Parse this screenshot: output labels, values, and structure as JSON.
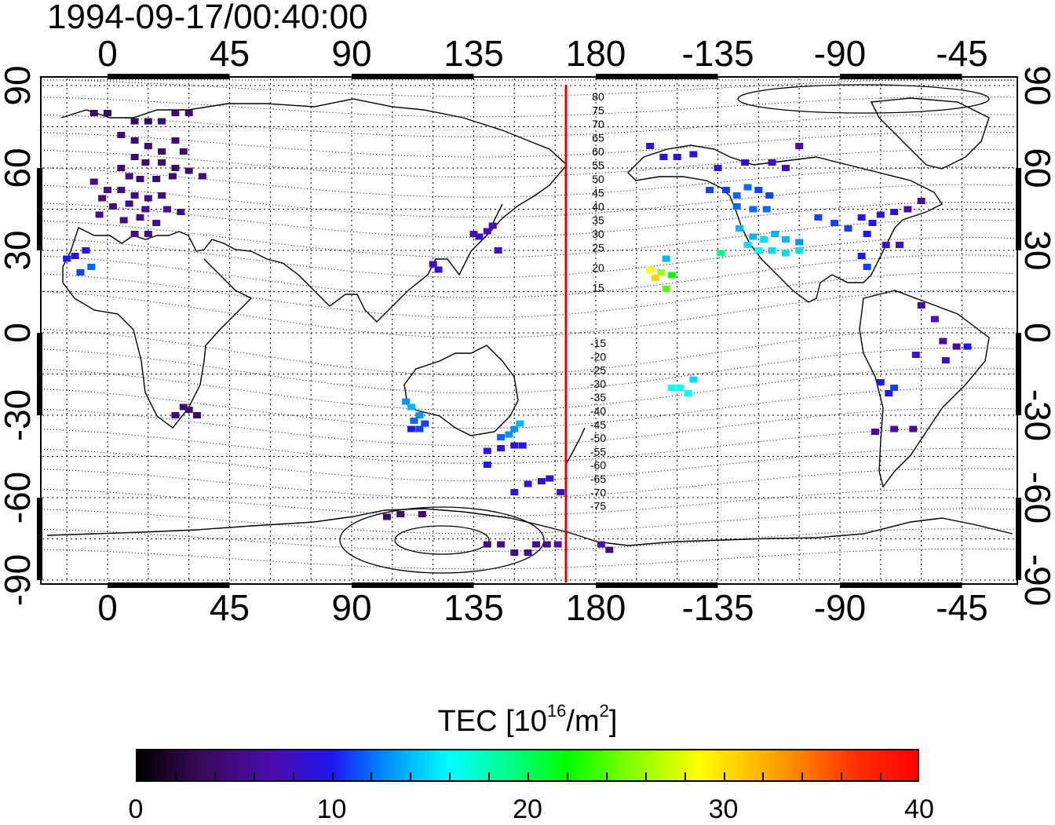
{
  "timestamp": "1994-09-17/00:40:00",
  "chart_data": {
    "type": "heatmap",
    "title": "1994-09-17/00:40:00",
    "x_ticks": [
      "0",
      "45",
      "90",
      "135",
      "180",
      "-135",
      "-90",
      "-45"
    ],
    "y_ticks_left": [
      "90",
      "60",
      "30",
      "0",
      "-30",
      "-60",
      "-90"
    ],
    "y_ticks_right": [
      "90",
      "60",
      "30",
      "0",
      "-30",
      "-60",
      "-90"
    ],
    "lon_range": [
      -20,
      325
    ],
    "lat_range": [
      -92,
      92
    ],
    "terminator_line_lon": 169,
    "terminator_color": "#e00000",
    "grid": true,
    "contour_labels_north": [
      "80",
      "75",
      "70",
      "65",
      "60",
      "55",
      "50",
      "45",
      "40",
      "35",
      "30",
      "25",
      "20",
      "15"
    ],
    "contour_labels_south": [
      "-15",
      "-20",
      "-25",
      "-30",
      "-35",
      "-40",
      "-45",
      "-50",
      "-55",
      "-60",
      "-65",
      "-70",
      "-75"
    ],
    "colorbar": {
      "label_main": "TEC  [10",
      "label_sup": "16",
      "label_mid": "/m",
      "label_sup2": "2",
      "label_end": "]",
      "range": [
        0,
        40
      ],
      "ticks": [
        "0",
        "10",
        "20",
        "30",
        "40"
      ]
    },
    "observations": [
      {
        "lon": -5,
        "lat": 80,
        "tec": 3
      },
      {
        "lon": 0,
        "lat": 80,
        "tec": 3
      },
      {
        "lon": 10,
        "lat": 77,
        "tec": 3
      },
      {
        "lon": 15,
        "lat": 77,
        "tec": 3
      },
      {
        "lon": 20,
        "lat": 77,
        "tec": 4
      },
      {
        "lon": 25,
        "lat": 80,
        "tec": 4
      },
      {
        "lon": 30,
        "lat": 80,
        "tec": 4
      },
      {
        "lon": 5,
        "lat": 72,
        "tec": 4
      },
      {
        "lon": 10,
        "lat": 70,
        "tec": 4
      },
      {
        "lon": 15,
        "lat": 68,
        "tec": 4
      },
      {
        "lon": 20,
        "lat": 66,
        "tec": 4
      },
      {
        "lon": 25,
        "lat": 70,
        "tec": 4
      },
      {
        "lon": 28,
        "lat": 66,
        "tec": 4
      },
      {
        "lon": 10,
        "lat": 64,
        "tec": 4
      },
      {
        "lon": 14,
        "lat": 62,
        "tec": 4
      },
      {
        "lon": 20,
        "lat": 62,
        "tec": 4
      },
      {
        "lon": 25,
        "lat": 60,
        "tec": 4
      },
      {
        "lon": 5,
        "lat": 60,
        "tec": 4
      },
      {
        "lon": 8,
        "lat": 57,
        "tec": 5
      },
      {
        "lon": 12,
        "lat": 56,
        "tec": 4
      },
      {
        "lon": 18,
        "lat": 56,
        "tec": 4
      },
      {
        "lon": 24,
        "lat": 57,
        "tec": 4
      },
      {
        "lon": 30,
        "lat": 59,
        "tec": 4
      },
      {
        "lon": 35,
        "lat": 57,
        "tec": 5
      },
      {
        "lon": -5,
        "lat": 55,
        "tec": 5
      },
      {
        "lon": 0,
        "lat": 52,
        "tec": 5
      },
      {
        "lon": 5,
        "lat": 52,
        "tec": 5
      },
      {
        "lon": 10,
        "lat": 50,
        "tec": 5
      },
      {
        "lon": 15,
        "lat": 49,
        "tec": 5
      },
      {
        "lon": 20,
        "lat": 50,
        "tec": 5
      },
      {
        "lon": -2,
        "lat": 49,
        "tec": 5
      },
      {
        "lon": 2,
        "lat": 46,
        "tec": 5
      },
      {
        "lon": 8,
        "lat": 47,
        "tec": 5
      },
      {
        "lon": 14,
        "lat": 45,
        "tec": 6
      },
      {
        "lon": 22,
        "lat": 45,
        "tec": 6
      },
      {
        "lon": 27,
        "lat": 44,
        "tec": 5
      },
      {
        "lon": 12,
        "lat": 42,
        "tec": 5
      },
      {
        "lon": 18,
        "lat": 40,
        "tec": 5
      },
      {
        "lon": 6,
        "lat": 41,
        "tec": 5
      },
      {
        "lon": -3,
        "lat": 43,
        "tec": 6
      },
      {
        "lon": 10,
        "lat": 36,
        "tec": 5
      },
      {
        "lon": 15,
        "lat": 36,
        "tec": 5
      },
      {
        "lon": -15,
        "lat": 27,
        "tec": 10
      },
      {
        "lon": -12,
        "lat": 28,
        "tec": 9
      },
      {
        "lon": -8,
        "lat": 30,
        "tec": 9
      },
      {
        "lon": -10,
        "lat": 22,
        "tec": 11
      },
      {
        "lon": -6,
        "lat": 24,
        "tec": 12
      },
      {
        "lon": 28,
        "lat": -27,
        "tec": 4
      },
      {
        "lon": 30,
        "lat": -28,
        "tec": 4
      },
      {
        "lon": 25,
        "lat": -30,
        "tec": 4
      },
      {
        "lon": 33,
        "lat": -30,
        "tec": 4
      },
      {
        "lon": 135,
        "lat": 36,
        "tec": 7
      },
      {
        "lon": 140,
        "lat": 37,
        "tec": 7
      },
      {
        "lon": 142,
        "lat": 39,
        "tec": 7
      },
      {
        "lon": 137,
        "lat": 35,
        "tec": 8
      },
      {
        "lon": 144,
        "lat": 30,
        "tec": 8
      },
      {
        "lon": 120,
        "lat": 25,
        "tec": 8
      },
      {
        "lon": 122,
        "lat": 23,
        "tec": 8
      },
      {
        "lon": 110,
        "lat": -25,
        "tec": 13
      },
      {
        "lon": 112,
        "lat": -27,
        "tec": 14
      },
      {
        "lon": 115,
        "lat": -30,
        "tec": 13
      },
      {
        "lon": 113,
        "lat": -32,
        "tec": 12
      },
      {
        "lon": 117,
        "lat": -33,
        "tec": 11
      },
      {
        "lon": 112,
        "lat": -35,
        "tec": 10
      },
      {
        "lon": 115,
        "lat": -35,
        "tec": 11
      },
      {
        "lon": 145,
        "lat": -38,
        "tec": 12
      },
      {
        "lon": 148,
        "lat": -37,
        "tec": 13
      },
      {
        "lon": 150,
        "lat": -35,
        "tec": 13
      },
      {
        "lon": 152,
        "lat": -33,
        "tec": 14
      },
      {
        "lon": 140,
        "lat": -43,
        "tec": 9
      },
      {
        "lon": 145,
        "lat": -42,
        "tec": 9
      },
      {
        "lon": 150,
        "lat": -41,
        "tec": 9
      },
      {
        "lon": 153,
        "lat": -41,
        "tec": 10
      },
      {
        "lon": 140,
        "lat": -48,
        "tec": 10
      },
      {
        "lon": 155,
        "lat": -55,
        "tec": 9
      },
      {
        "lon": 160,
        "lat": -54,
        "tec": 9
      },
      {
        "lon": 163,
        "lat": -53,
        "tec": 9
      },
      {
        "lon": 150,
        "lat": -58,
        "tec": 9
      },
      {
        "lon": 167,
        "lat": -58,
        "tec": 8
      },
      {
        "lon": 103,
        "lat": -67,
        "tec": 4
      },
      {
        "lon": 108,
        "lat": -66,
        "tec": 4
      },
      {
        "lon": 116,
        "lat": -66,
        "tec": 4
      },
      {
        "lon": 140,
        "lat": -77,
        "tec": 5
      },
      {
        "lon": 145,
        "lat": -77,
        "tec": 5
      },
      {
        "lon": 150,
        "lat": -80,
        "tec": 5
      },
      {
        "lon": 155,
        "lat": -80,
        "tec": 5
      },
      {
        "lon": 158,
        "lat": -77,
        "tec": 6
      },
      {
        "lon": 162,
        "lat": -77,
        "tec": 6
      },
      {
        "lon": 166,
        "lat": -77,
        "tec": 7
      },
      {
        "lon": 182,
        "lat": -77,
        "tec": 7
      },
      {
        "lon": 185,
        "lat": -79,
        "tec": 5
      },
      {
        "lon": 200,
        "lat": 23,
        "tec": 29
      },
      {
        "lon": 202,
        "lat": 20,
        "tec": 31
      },
      {
        "lon": 204,
        "lat": 22,
        "tec": 26
      },
      {
        "lon": 206,
        "lat": 16,
        "tec": 24
      },
      {
        "lon": 208,
        "lat": 21,
        "tec": 22
      },
      {
        "lon": 206,
        "lat": 27,
        "tec": 14
      },
      {
        "lon": 208,
        "lat": -20,
        "tec": 16
      },
      {
        "lon": 211,
        "lat": -20,
        "tec": 16
      },
      {
        "lon": 214,
        "lat": -22,
        "tec": 16
      },
      {
        "lon": 216,
        "lat": -17,
        "tec": 15
      },
      {
        "lon": 200,
        "lat": 68,
        "tec": 9
      },
      {
        "lon": 205,
        "lat": 64,
        "tec": 9
      },
      {
        "lon": 210,
        "lat": 64,
        "tec": 9
      },
      {
        "lon": 216,
        "lat": 65,
        "tec": 9
      },
      {
        "lon": 225,
        "lat": 60,
        "tec": 9
      },
      {
        "lon": 235,
        "lat": 62,
        "tec": 9
      },
      {
        "lon": 245,
        "lat": 62,
        "tec": 8
      },
      {
        "lon": 250,
        "lat": 60,
        "tec": 8
      },
      {
        "lon": 255,
        "lat": 68,
        "tec": 7
      },
      {
        "lon": 222,
        "lat": 52,
        "tec": 11
      },
      {
        "lon": 228,
        "lat": 52,
        "tec": 11
      },
      {
        "lon": 232,
        "lat": 50,
        "tec": 12
      },
      {
        "lon": 236,
        "lat": 53,
        "tec": 12
      },
      {
        "lon": 240,
        "lat": 52,
        "tec": 11
      },
      {
        "lon": 244,
        "lat": 50,
        "tec": 11
      },
      {
        "lon": 232,
        "lat": 46,
        "tec": 12
      },
      {
        "lon": 238,
        "lat": 45,
        "tec": 12
      },
      {
        "lon": 243,
        "lat": 45,
        "tec": 12
      },
      {
        "lon": 233,
        "lat": 38,
        "tec": 14
      },
      {
        "lon": 238,
        "lat": 35,
        "tec": 14
      },
      {
        "lon": 242,
        "lat": 34,
        "tec": 15
      },
      {
        "lon": 246,
        "lat": 36,
        "tec": 14
      },
      {
        "lon": 250,
        "lat": 34,
        "tec": 14
      },
      {
        "lon": 255,
        "lat": 33,
        "tec": 13
      },
      {
        "lon": 236,
        "lat": 32,
        "tec": 15
      },
      {
        "lon": 240,
        "lat": 30,
        "tec": 16
      },
      {
        "lon": 245,
        "lat": 30,
        "tec": 15
      },
      {
        "lon": 250,
        "lat": 29,
        "tec": 15
      },
      {
        "lon": 255,
        "lat": 30,
        "tec": 15
      },
      {
        "lon": 226,
        "lat": 29,
        "tec": 19
      },
      {
        "lon": 262,
        "lat": 42,
        "tec": 11
      },
      {
        "lon": 268,
        "lat": 40,
        "tec": 11
      },
      {
        "lon": 273,
        "lat": 38,
        "tec": 11
      },
      {
        "lon": 278,
        "lat": 42,
        "tec": 10
      },
      {
        "lon": 282,
        "lat": 40,
        "tec": 10
      },
      {
        "lon": 285,
        "lat": 43,
        "tec": 9
      },
      {
        "lon": 290,
        "lat": 44,
        "tec": 9
      },
      {
        "lon": 280,
        "lat": 36,
        "tec": 10
      },
      {
        "lon": 287,
        "lat": 32,
        "tec": 8
      },
      {
        "lon": 292,
        "lat": 32,
        "tec": 8
      },
      {
        "lon": 278,
        "lat": 28,
        "tec": 10
      },
      {
        "lon": 280,
        "lat": 24,
        "tec": 11
      },
      {
        "lon": 300,
        "lat": 48,
        "tec": 6
      },
      {
        "lon": 295,
        "lat": 45,
        "tec": 6
      },
      {
        "lon": 300,
        "lat": 10,
        "tec": 6
      },
      {
        "lon": 305,
        "lat": 5,
        "tec": 7
      },
      {
        "lon": 308,
        "lat": -3,
        "tec": 6
      },
      {
        "lon": 313,
        "lat": -5,
        "tec": 6
      },
      {
        "lon": 317,
        "lat": -5,
        "tec": 10
      },
      {
        "lon": 309,
        "lat": -10,
        "tec": 8
      },
      {
        "lon": 298,
        "lat": -8,
        "tec": 8
      },
      {
        "lon": 285,
        "lat": -18,
        "tec": 10
      },
      {
        "lon": 288,
        "lat": -22,
        "tec": 10
      },
      {
        "lon": 290,
        "lat": -20,
        "tec": 11
      },
      {
        "lon": 283,
        "lat": -36,
        "tec": 6
      },
      {
        "lon": 290,
        "lat": -35,
        "tec": 7
      },
      {
        "lon": 297,
        "lat": -35,
        "tec": 6
      }
    ]
  }
}
